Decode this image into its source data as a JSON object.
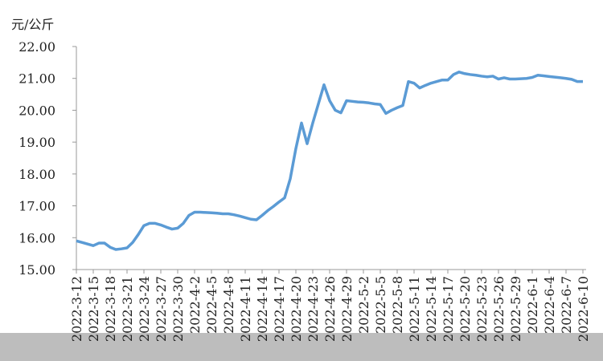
{
  "chart_data": {
    "type": "line",
    "y_label": "元/公斤",
    "categories": [
      "2022-3-12",
      null,
      null,
      "2022-3-15",
      null,
      null,
      "2022-3-18",
      null,
      null,
      "2022-3-21",
      null,
      null,
      "2022-3-24",
      null,
      null,
      "2022-3-27",
      null,
      null,
      "2022-3-30",
      null,
      null,
      "2022-4-2",
      null,
      null,
      "2022-4-5",
      null,
      null,
      "2022-4-8",
      null,
      null,
      "2022-4-11",
      null,
      null,
      "2022-4-14",
      null,
      null,
      "2022-4-17",
      null,
      null,
      "2022-4-20",
      null,
      null,
      "2022-4-23",
      null,
      null,
      "2022-4-26",
      null,
      null,
      "2022-4-29",
      null,
      null,
      "2022-5-2",
      null,
      null,
      "2022-5-5",
      null,
      null,
      "2022-5-8",
      null,
      null,
      "2022-5-11",
      null,
      null,
      "2022-5-14",
      null,
      null,
      "2022-5-17",
      null,
      null,
      "2022-5-20",
      null,
      null,
      "2022-5-23",
      null,
      null,
      "2022-5-26",
      null,
      null,
      "2022-5-29",
      null,
      null,
      "2022-6-1",
      null,
      null,
      "2022-6-4",
      null,
      null,
      "2022-6-7",
      null,
      null,
      "2022-6-10"
    ],
    "series": [
      {
        "color": "#5b9bd5",
        "values": [
          15.9,
          15.85,
          15.8,
          15.75,
          15.83,
          15.83,
          15.7,
          15.63,
          15.65,
          15.68,
          15.85,
          16.1,
          16.38,
          16.45,
          16.45,
          16.4,
          16.33,
          16.27,
          16.3,
          16.45,
          16.7,
          16.8,
          16.8,
          16.79,
          16.78,
          16.77,
          16.75,
          16.75,
          16.72,
          16.68,
          16.63,
          16.58,
          16.56,
          16.7,
          16.85,
          16.98,
          17.12,
          17.25,
          17.85,
          18.8,
          19.6,
          18.95,
          19.6,
          20.2,
          20.8,
          20.3,
          20.0,
          19.92,
          20.3,
          20.28,
          20.26,
          20.25,
          20.23,
          20.2,
          20.18,
          19.9,
          20.0,
          20.08,
          20.15,
          20.9,
          20.85,
          20.7,
          20.78,
          20.85,
          20.9,
          20.95,
          20.95,
          21.12,
          21.2,
          21.15,
          21.12,
          21.1,
          21.07,
          21.05,
          21.07,
          20.98,
          21.02,
          20.98,
          20.98,
          20.99,
          21.0,
          21.03,
          21.1,
          21.08,
          21.06,
          21.04,
          21.02,
          21.0,
          20.97,
          20.9,
          20.9
        ]
      }
    ],
    "ylim": [
      15,
      22
    ],
    "yticks": [
      {
        "value": 15,
        "label": "15.00"
      },
      {
        "value": 16,
        "label": "16.00"
      },
      {
        "value": 17,
        "label": "17.00"
      },
      {
        "value": 18,
        "label": "18.00"
      },
      {
        "value": 19,
        "label": "19.00"
      },
      {
        "value": 20,
        "label": "20.00"
      },
      {
        "value": 21,
        "label": "21.00"
      },
      {
        "value": 22,
        "label": "22.00"
      }
    ],
    "grid": false
  }
}
